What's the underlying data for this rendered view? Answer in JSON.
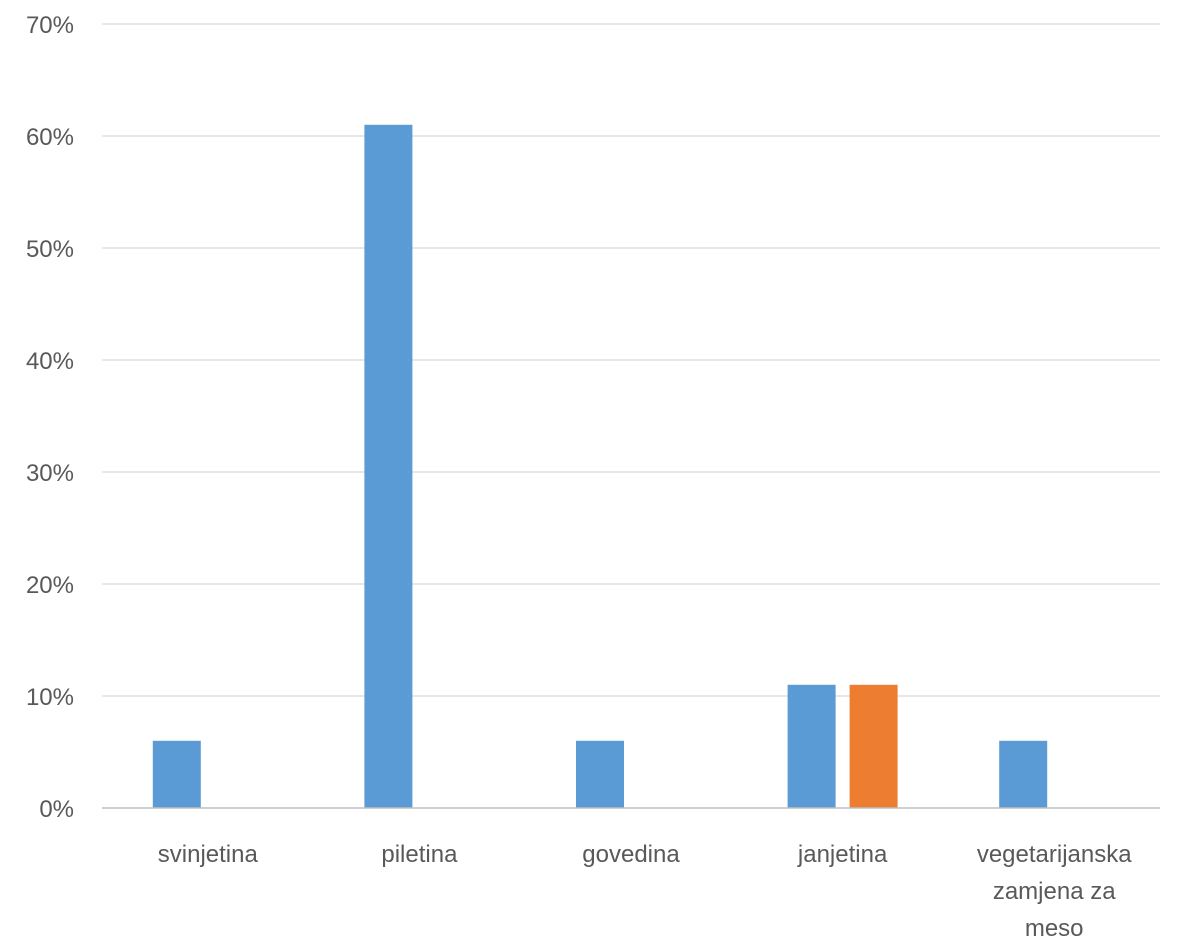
{
  "chart_data": {
    "type": "bar",
    "categories": [
      "svinjetina",
      "piletina",
      "govedina",
      "janjetina",
      "vegetarijanska zamjena za meso"
    ],
    "category_label_lines": [
      [
        "svinjetina"
      ],
      [
        "piletina"
      ],
      [
        "govedina"
      ],
      [
        "janjetina"
      ],
      [
        "vegetarijanska",
        "zamjena za",
        "meso"
      ]
    ],
    "series": [
      {
        "color": "#5b9bd5",
        "values": [
          6,
          61,
          6,
          11,
          6
        ]
      },
      {
        "color": "#ed7d31",
        "values": [
          null,
          null,
          null,
          11,
          null
        ]
      }
    ],
    "title": "",
    "xlabel": "",
    "ylabel": "",
    "ylim": [
      0,
      70
    ],
    "yticks": [
      0,
      10,
      20,
      30,
      40,
      50,
      60,
      70
    ],
    "ytick_labels": [
      "0%",
      "10%",
      "20%",
      "30%",
      "40%",
      "50%",
      "60%",
      "70%"
    ],
    "grid": true,
    "gridline_color": "#d9d9d9",
    "legend": "none"
  }
}
